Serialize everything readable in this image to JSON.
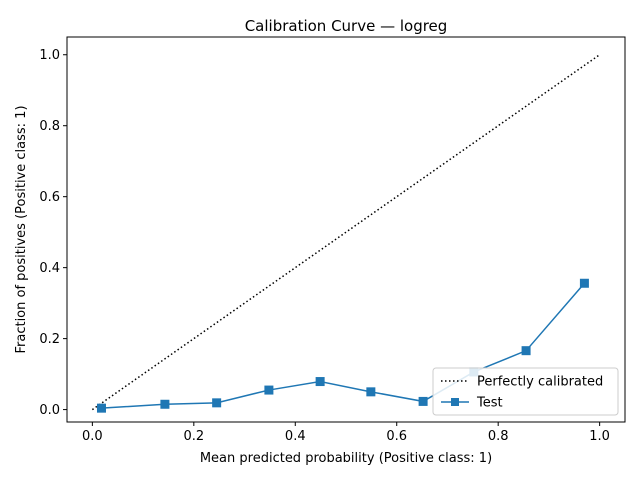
{
  "chart_data": {
    "type": "line",
    "title": "Calibration Curve — logreg",
    "xlabel": "Mean predicted probability (Positive class: 1)",
    "ylabel": "Fraction of positives (Positive class: 1)",
    "xlim": [
      -0.05,
      1.05
    ],
    "ylim": [
      -0.035,
      1.05
    ],
    "xticks": [
      0.0,
      0.2,
      0.4,
      0.6,
      0.8,
      1.0
    ],
    "yticks": [
      0.0,
      0.2,
      0.4,
      0.6,
      0.8,
      1.0
    ],
    "xtick_labels": [
      "0.0",
      "0.2",
      "0.4",
      "0.6",
      "0.8",
      "1.0"
    ],
    "ytick_labels": [
      "0.0",
      "0.2",
      "0.4",
      "0.6",
      "0.8",
      "1.0"
    ],
    "grid": false,
    "legend_position": "bottom-right",
    "series": [
      {
        "name": "Perfectly calibrated",
        "style": "dotted",
        "marker": "none",
        "color": "#000000",
        "x": [
          0.0,
          1.0
        ],
        "y": [
          0.0,
          1.0
        ]
      },
      {
        "name": "Test",
        "style": "solid",
        "marker": "square",
        "color": "#1f77b4",
        "x": [
          0.018,
          0.143,
          0.245,
          0.348,
          0.449,
          0.549,
          0.652,
          0.752,
          0.855,
          0.97
        ],
        "y": [
          0.004,
          0.015,
          0.019,
          0.055,
          0.079,
          0.05,
          0.023,
          0.106,
          0.166,
          0.356
        ]
      }
    ]
  }
}
